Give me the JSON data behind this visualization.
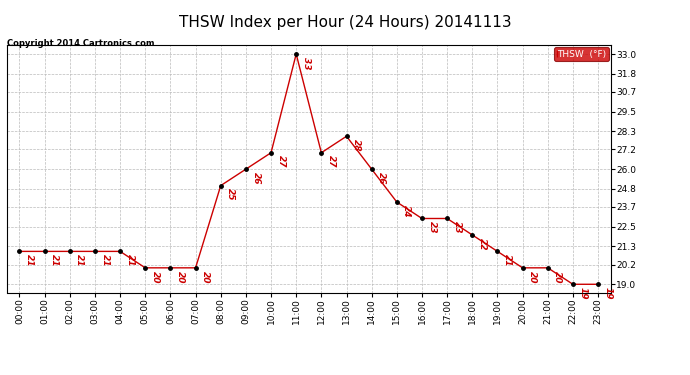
{
  "title": "THSW Index per Hour (24 Hours) 20141113",
  "copyright": "Copyright 2014 Cartronics.com",
  "legend_label": "THSW  (°F)",
  "hours": [
    0,
    1,
    2,
    3,
    4,
    5,
    6,
    7,
    8,
    9,
    10,
    11,
    12,
    13,
    14,
    15,
    16,
    17,
    18,
    19,
    20,
    21,
    22,
    23
  ],
  "values": [
    21,
    21,
    21,
    21,
    21,
    20,
    20,
    20,
    25,
    26,
    27,
    33,
    27,
    28,
    26,
    24,
    23,
    23,
    22,
    21,
    20,
    20,
    19,
    19
  ],
  "x_labels": [
    "00:00",
    "01:00",
    "02:00",
    "03:00",
    "04:00",
    "05:00",
    "06:00",
    "07:00",
    "08:00",
    "09:00",
    "10:00",
    "11:00",
    "12:00",
    "13:00",
    "14:00",
    "15:00",
    "16:00",
    "17:00",
    "18:00",
    "19:00",
    "20:00",
    "21:00",
    "22:00",
    "23:00"
  ],
  "y_ticks": [
    19.0,
    20.2,
    21.3,
    22.5,
    23.7,
    24.8,
    26.0,
    27.2,
    28.3,
    29.5,
    30.7,
    31.8,
    33.0
  ],
  "ylim_min": 18.5,
  "ylim_max": 33.55,
  "line_color": "#cc0000",
  "marker_color": "#000000",
  "label_color": "#cc0000",
  "bg_color": "#ffffff",
  "grid_color": "#bbbbbb",
  "title_fontsize": 11,
  "label_fontsize": 6.5,
  "tick_fontsize": 6.5,
  "legend_bg": "#cc0000",
  "legend_text_color": "#ffffff"
}
